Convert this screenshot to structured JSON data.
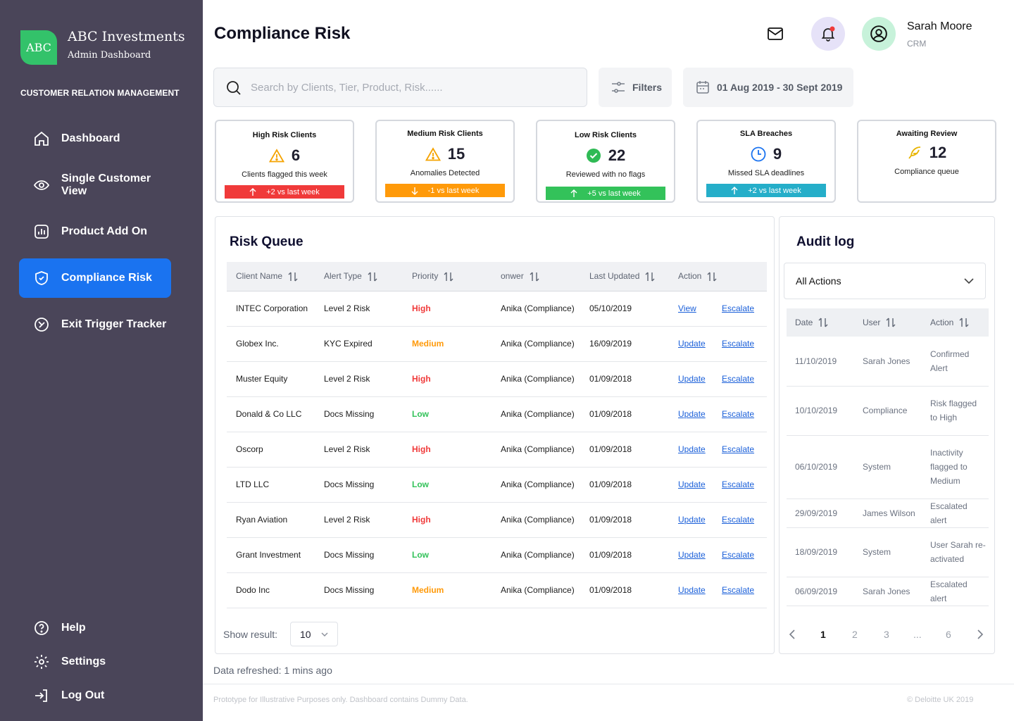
{
  "brand": {
    "logo_text": "ABC",
    "name": "ABC Investments",
    "subtitle": "Admin Dashboard",
    "color": "#33c26a"
  },
  "sidebar": {
    "section_label": "CUSTOMER RELATION MANAGEMENT",
    "items": [
      {
        "label": "Dashboard",
        "icon": "home-icon"
      },
      {
        "label": "Single Customer View",
        "icon": "eye-icon"
      },
      {
        "label": "Product Add On",
        "icon": "bar-chart-icon"
      },
      {
        "label": "Compliance Risk",
        "icon": "shield-check-icon",
        "active": true
      },
      {
        "label": "Exit Trigger Tracker",
        "icon": "exit-circle-icon"
      }
    ],
    "bottom_items": [
      {
        "label": "Help",
        "icon": "help-icon"
      },
      {
        "label": "Settings",
        "icon": "gear-icon"
      },
      {
        "label": "Log Out",
        "icon": "logout-icon"
      }
    ],
    "active_color": "#1a73f0"
  },
  "header": {
    "title": "Compliance Risk",
    "user": {
      "name": "Sarah Moore",
      "role": "CRM"
    }
  },
  "search": {
    "placeholder": "Search by Clients, Tier, Product, Risk......"
  },
  "filters_label": "Filters",
  "date_range": "01 Aug 2019 - 30 Sept 2019",
  "cards": [
    {
      "title": "High Risk Clients",
      "value": "6",
      "subtitle": "Clients flagged this week",
      "badge": "+2 vs last week",
      "badge_color": "#f03a3a",
      "icon": "warning-icon"
    },
    {
      "title": "Medium Risk Clients",
      "value": "15",
      "subtitle": "Anomalies Detected",
      "badge": "-1 vs last week",
      "badge_color": "#ff9a0a",
      "icon": "warning-icon"
    },
    {
      "title": "Low Risk Clients",
      "value": "22",
      "subtitle": "Reviewed with no flags",
      "badge": "+5 vs last week",
      "badge_color": "#33c25a",
      "icon": "check-circle-icon"
    },
    {
      "title": "SLA Breaches",
      "value": "9",
      "subtitle": "Missed SLA deadlines",
      "badge": "+2 vs last week",
      "badge_color": "#25aec9",
      "icon": "clock-icon"
    },
    {
      "title": "Awaiting Review",
      "value": "12",
      "subtitle": "Compliance queue",
      "badge": "",
      "icon": "feather-icon"
    }
  ],
  "risk_queue": {
    "title": "Risk Queue",
    "columns": [
      "Client Name",
      "Alert Type",
      "Priority",
      "onwer",
      "Last Updated",
      "Action"
    ],
    "rows": [
      {
        "client": "INTEC Corporation",
        "alert": "Level 2 Risk",
        "priority": "High",
        "owner": "Anika (Compliance)",
        "updated": "05/10/2019",
        "action1": "View",
        "action2": "Escalate"
      },
      {
        "client": "Globex Inc.",
        "alert": "KYC Expired",
        "priority": "Medium",
        "owner": "Anika (Compliance)",
        "updated": "16/09/2019",
        "action1": "Update",
        "action2": "Escalate"
      },
      {
        "client": "Muster Equity",
        "alert": "Level 2 Risk",
        "priority": "High",
        "owner": "Anika (Compliance)",
        "updated": "01/09/2018",
        "action1": "Update",
        "action2": "Escalate"
      },
      {
        "client": "Donald & Co LLC",
        "alert": "Docs Missing",
        "priority": "Low",
        "owner": "Anika (Compliance)",
        "updated": "01/09/2018",
        "action1": "Update",
        "action2": "Escalate"
      },
      {
        "client": "Oscorp",
        "alert": "Level 2 Risk",
        "priority": "High",
        "owner": "Anika (Compliance)",
        "updated": "01/09/2018",
        "action1": "Update",
        "action2": "Escalate"
      },
      {
        "client": "LTD LLC",
        "alert": "Docs Missing",
        "priority": "Low",
        "owner": "Anika (Compliance)",
        "updated": "01/09/2018",
        "action1": "Update",
        "action2": "Escalate"
      },
      {
        "client": "Ryan Aviation",
        "alert": "Level 2 Risk",
        "priority": "High",
        "owner": "Anika (Compliance)",
        "updated": "01/09/2018",
        "action1": "Update",
        "action2": "Escalate"
      },
      {
        "client": "Grant Investment",
        "alert": "Docs Missing",
        "priority": "Low",
        "owner": "Anika (Compliance)",
        "updated": "01/09/2018",
        "action1": "Update",
        "action2": "Escalate"
      },
      {
        "client": "Dodo Inc",
        "alert": "Docs Missing",
        "priority": "Medium",
        "owner": "Anika (Compliance)",
        "updated": "01/09/2018",
        "action1": "Update",
        "action2": "Escalate"
      }
    ],
    "priority_colors": {
      "High": "#f03a3a",
      "Medium": "#ff9a0a",
      "Low": "#33c25a"
    },
    "show_result_label": "Show result:",
    "show_result_value": "10"
  },
  "audit_log": {
    "title": "Audit log",
    "filter_value": "All Actions",
    "columns": [
      "Date",
      "User",
      "Action"
    ],
    "rows": [
      {
        "date": "11/10/2019",
        "user": "Sarah Jones",
        "action": "Confirmed Alert"
      },
      {
        "date": "10/10/2019",
        "user": "Compliance",
        "action": "Risk flagged to High"
      },
      {
        "date": "06/10/2019",
        "user": "System",
        "action": "Inactivity flagged to Medium"
      },
      {
        "date": "29/09/2019",
        "user": "James Wilson",
        "action": "Escalated alert"
      },
      {
        "date": "18/09/2019",
        "user": "System",
        "action": "User Sarah re-activated"
      },
      {
        "date": "06/09/2019",
        "user": "Sarah Jones",
        "action": "Escalated alert"
      }
    ],
    "pages": [
      "1",
      "2",
      "3",
      "...",
      "6"
    ],
    "current_page": "1"
  },
  "refreshed": "Data refreshed: 1 mins ago",
  "footer": {
    "left": "Prototype for Illustrative Purposes only. Dashboard contains Dummy Data.",
    "right": "© Deloitte UK 2019"
  }
}
